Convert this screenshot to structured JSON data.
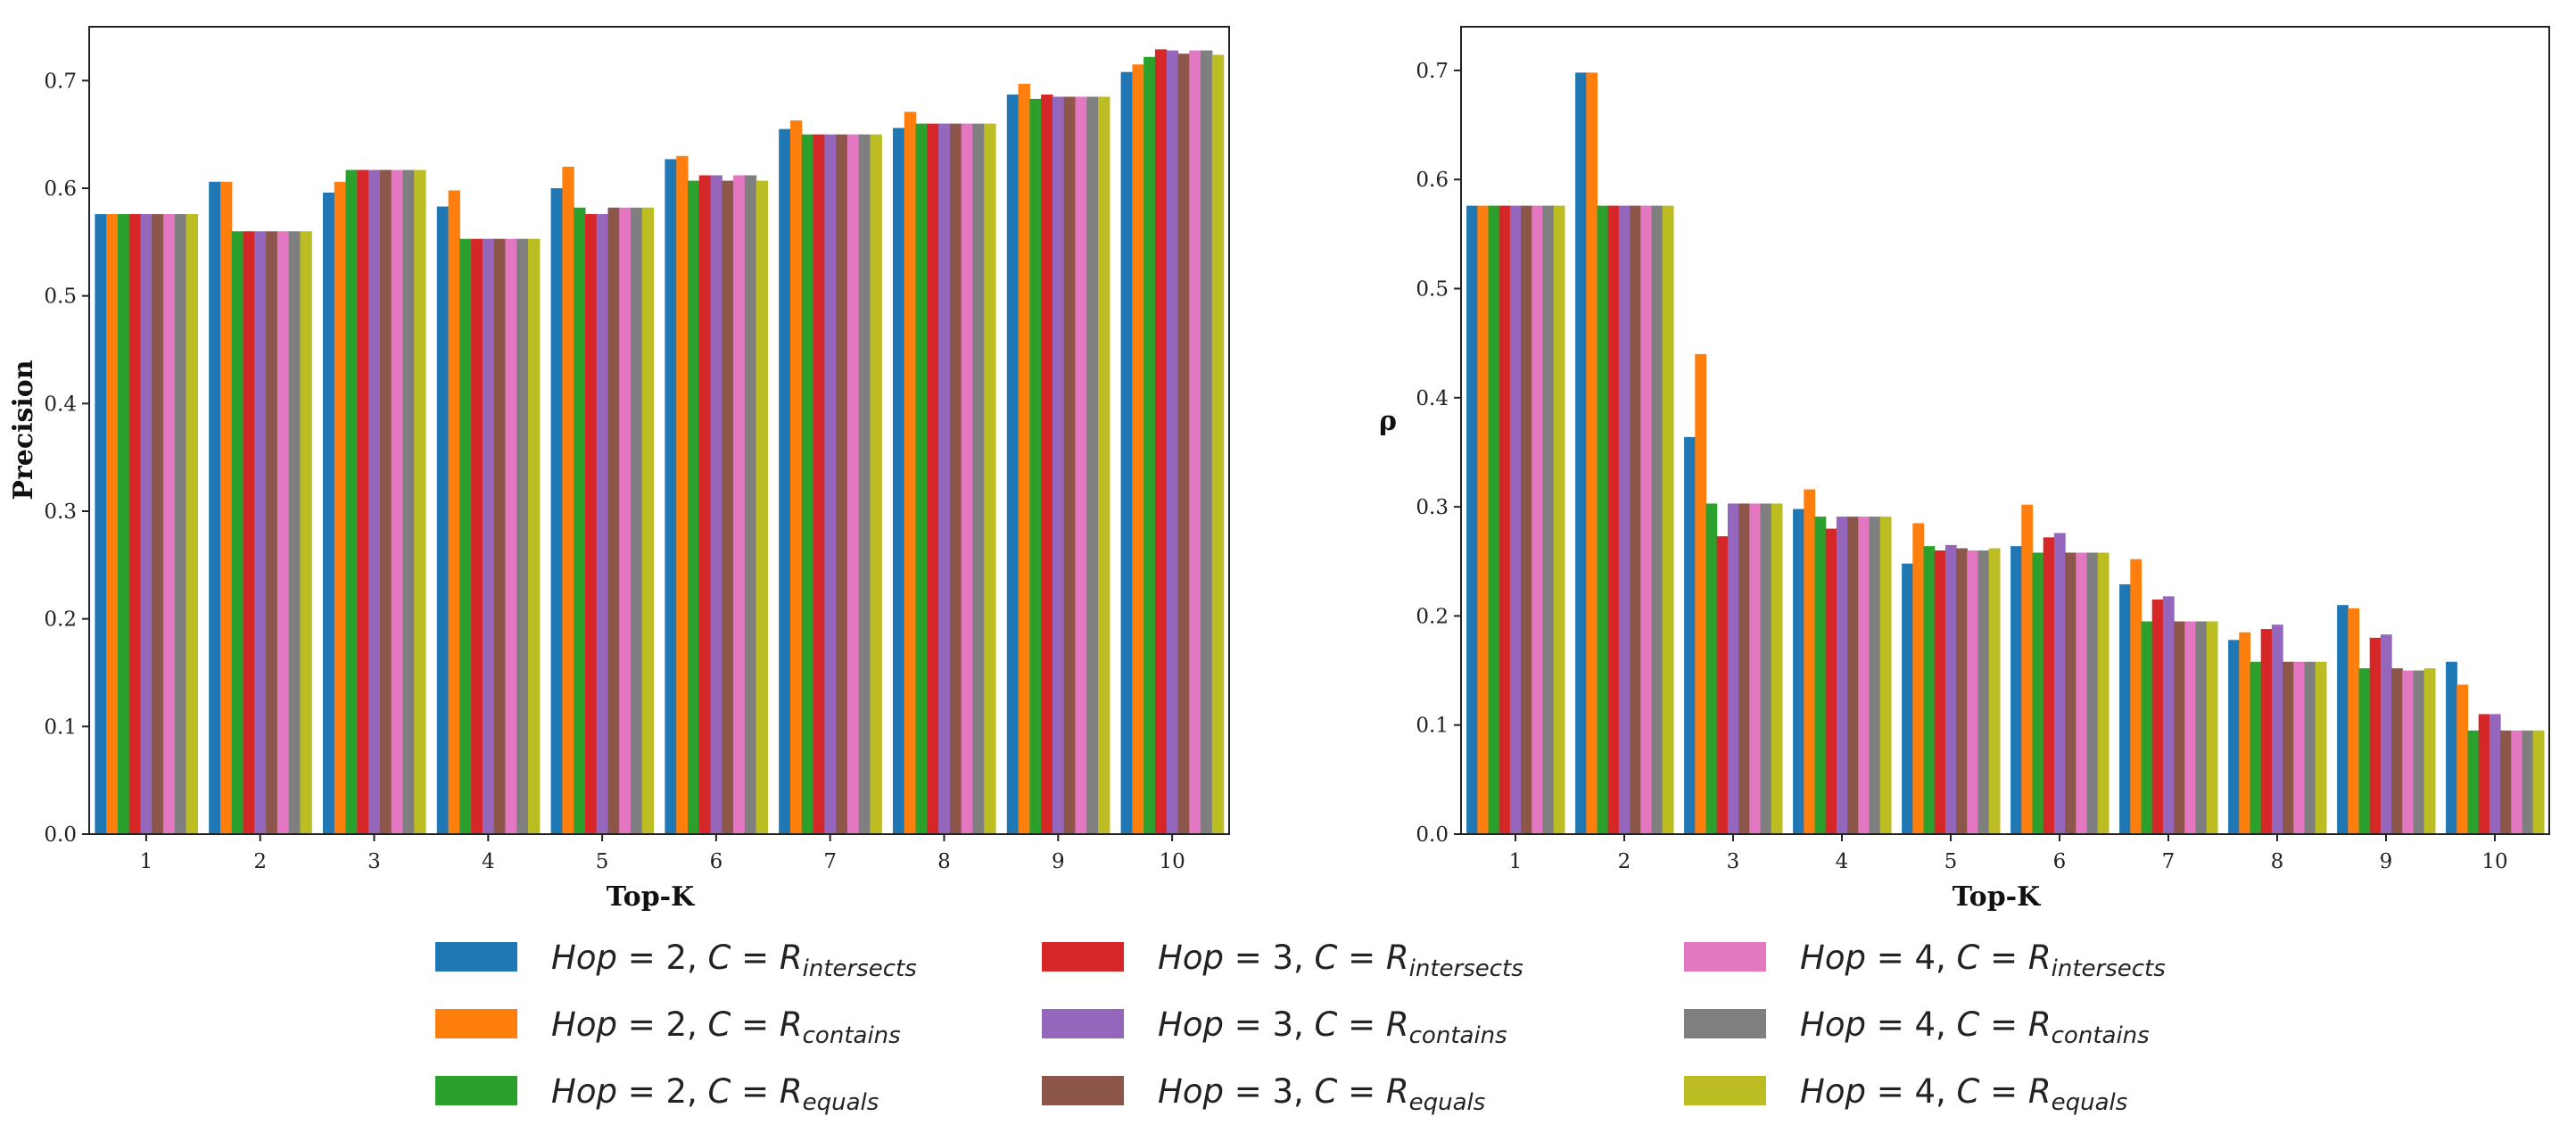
{
  "chart_data": [
    {
      "type": "bar",
      "xlabel": "Top-K",
      "ylabel": "Precision",
      "categories": [
        "1",
        "2",
        "3",
        "4",
        "5",
        "6",
        "7",
        "8",
        "9",
        "10"
      ],
      "ylim": [
        0,
        0.75
      ],
      "yticks": [
        "0.0",
        "0.1",
        "0.2",
        "0.3",
        "0.4",
        "0.5",
        "0.6",
        "0.7"
      ],
      "series": [
        {
          "name": "Hop=2, C=R_intersects",
          "values": [
            0.576,
            0.606,
            0.596,
            0.583,
            0.6,
            0.627,
            0.655,
            0.656,
            0.687,
            0.708
          ]
        },
        {
          "name": "Hop=2, C=R_contains",
          "values": [
            0.576,
            0.606,
            0.606,
            0.598,
            0.62,
            0.63,
            0.663,
            0.671,
            0.697,
            0.715
          ]
        },
        {
          "name": "Hop=2, C=R_equals",
          "values": [
            0.576,
            0.56,
            0.617,
            0.553,
            0.582,
            0.607,
            0.65,
            0.66,
            0.683,
            0.722
          ]
        },
        {
          "name": "Hop=3, C=R_intersects",
          "values": [
            0.576,
            0.56,
            0.617,
            0.553,
            0.576,
            0.612,
            0.65,
            0.66,
            0.687,
            0.729
          ]
        },
        {
          "name": "Hop=3, C=R_contains",
          "values": [
            0.576,
            0.56,
            0.617,
            0.553,
            0.576,
            0.612,
            0.65,
            0.66,
            0.685,
            0.728
          ]
        },
        {
          "name": "Hop=3, C=R_equals",
          "values": [
            0.576,
            0.56,
            0.617,
            0.553,
            0.582,
            0.607,
            0.65,
            0.66,
            0.685,
            0.725
          ]
        },
        {
          "name": "Hop=4, C=R_intersects",
          "values": [
            0.576,
            0.56,
            0.617,
            0.553,
            0.582,
            0.612,
            0.65,
            0.66,
            0.685,
            0.728
          ]
        },
        {
          "name": "Hop=4, C=R_contains",
          "values": [
            0.576,
            0.56,
            0.617,
            0.553,
            0.582,
            0.612,
            0.65,
            0.66,
            0.685,
            0.728
          ]
        },
        {
          "name": "Hop=4, C=R_equals",
          "values": [
            0.576,
            0.56,
            0.617,
            0.553,
            0.582,
            0.607,
            0.65,
            0.66,
            0.685,
            0.724
          ]
        }
      ]
    },
    {
      "type": "bar",
      "xlabel": "Top-K",
      "ylabel": "ρ",
      "categories": [
        "1",
        "2",
        "3",
        "4",
        "5",
        "6",
        "7",
        "8",
        "9",
        "10"
      ],
      "ylim": [
        0,
        0.74
      ],
      "yticks": [
        "0.0",
        "0.1",
        "0.2",
        "0.3",
        "0.4",
        "0.5",
        "0.6",
        "0.7"
      ],
      "series": [
        {
          "name": "Hop=2, C=R_intersects",
          "values": [
            0.576,
            0.698,
            0.364,
            0.298,
            0.248,
            0.264,
            0.229,
            0.178,
            0.21,
            0.158
          ]
        },
        {
          "name": "Hop=2, C=R_contains",
          "values": [
            0.576,
            0.698,
            0.44,
            0.316,
            0.285,
            0.302,
            0.252,
            0.185,
            0.207,
            0.137
          ]
        },
        {
          "name": "Hop=2, C=R_equals",
          "values": [
            0.576,
            0.576,
            0.303,
            0.291,
            0.264,
            0.258,
            0.195,
            0.158,
            0.152,
            0.095
          ]
        },
        {
          "name": "Hop=3, C=R_intersects",
          "values": [
            0.576,
            0.576,
            0.273,
            0.28,
            0.26,
            0.272,
            0.215,
            0.188,
            0.18,
            0.11
          ]
        },
        {
          "name": "Hop=3, C=R_contains",
          "values": [
            0.576,
            0.576,
            0.303,
            0.291,
            0.265,
            0.276,
            0.218,
            0.192,
            0.183,
            0.11
          ]
        },
        {
          "name": "Hop=3, C=R_equals",
          "values": [
            0.576,
            0.576,
            0.303,
            0.291,
            0.262,
            0.258,
            0.195,
            0.158,
            0.152,
            0.095
          ]
        },
        {
          "name": "Hop=4, C=R_intersects",
          "values": [
            0.576,
            0.576,
            0.303,
            0.291,
            0.26,
            0.258,
            0.195,
            0.158,
            0.15,
            0.095
          ]
        },
        {
          "name": "Hop=4, C=R_contains",
          "values": [
            0.576,
            0.576,
            0.303,
            0.291,
            0.26,
            0.258,
            0.195,
            0.158,
            0.15,
            0.095
          ]
        },
        {
          "name": "Hop=4, C=R_equals",
          "values": [
            0.576,
            0.576,
            0.303,
            0.291,
            0.262,
            0.258,
            0.195,
            0.158,
            0.152,
            0.095
          ]
        }
      ]
    }
  ],
  "legend": {
    "colors": [
      "#1f77b4",
      "#ff7f0e",
      "#2ca02c",
      "#d62728",
      "#9467bd",
      "#8c564b",
      "#e377c2",
      "#7f7f7f",
      "#bcbd22"
    ],
    "entries": [
      {
        "hop": "Hop",
        "hop_value": "= 2, ",
        "c": "C",
        "eq": " = ",
        "r": "R",
        "sub": "intersects"
      },
      {
        "hop": "Hop",
        "hop_value": "= 2, ",
        "c": "C",
        "eq": " = ",
        "r": "R",
        "sub": "contains"
      },
      {
        "hop": "Hop",
        "hop_value": "= 2, ",
        "c": "C",
        "eq": " = ",
        "r": "R",
        "sub": "equals"
      },
      {
        "hop": "Hop",
        "hop_value": "= 3, ",
        "c": "C",
        "eq": " = ",
        "r": "R",
        "sub": "intersects"
      },
      {
        "hop": "Hop",
        "hop_value": "= 3, ",
        "c": "C",
        "eq": " = ",
        "r": "R",
        "sub": "contains"
      },
      {
        "hop": "Hop",
        "hop_value": "= 3, ",
        "c": "C",
        "eq": " = ",
        "r": "R",
        "sub": "equals"
      },
      {
        "hop": "Hop",
        "hop_value": "= 4, ",
        "c": "C",
        "eq": " = ",
        "r": "R",
        "sub": "intersects"
      },
      {
        "hop": "Hop",
        "hop_value": "= 4, ",
        "c": "C",
        "eq": " = ",
        "r": "R",
        "sub": "contains"
      },
      {
        "hop": "Hop",
        "hop_value": "= 4, ",
        "c": "C",
        "eq": " = ",
        "r": "R",
        "sub": "equals"
      }
    ]
  }
}
